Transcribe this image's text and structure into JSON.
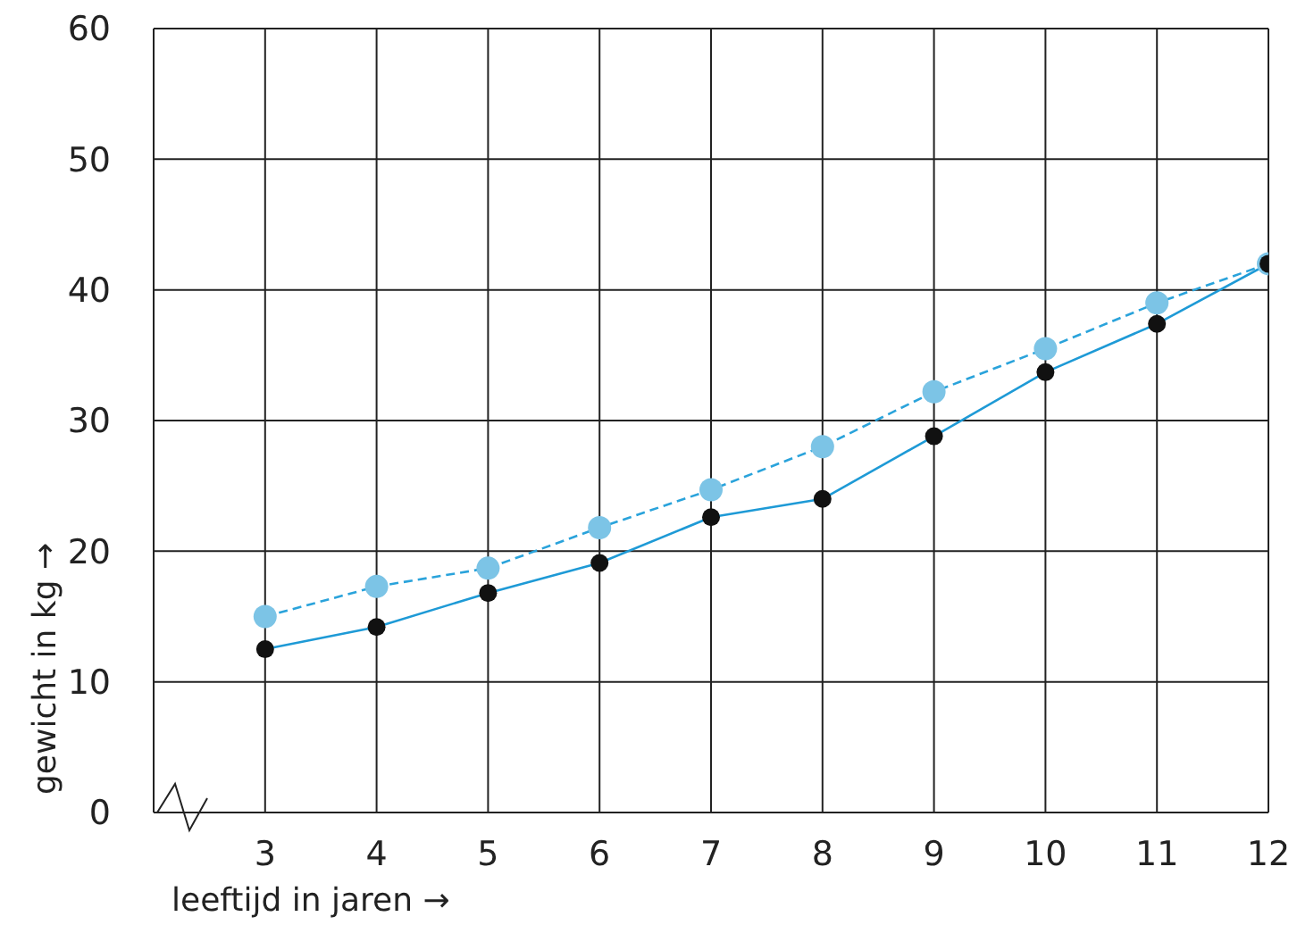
{
  "chart_data": {
    "type": "line",
    "xlabel": "leeftijd in jaren →",
    "ylabel": "gewicht in kg →",
    "x": [
      3,
      4,
      5,
      6,
      7,
      8,
      9,
      10,
      11,
      12
    ],
    "xlim": [
      2,
      12
    ],
    "xticks": [
      3,
      4,
      5,
      6,
      7,
      8,
      9,
      10,
      11,
      12
    ],
    "ylim": [
      0,
      60
    ],
    "yticks": [
      0,
      10,
      20,
      30,
      40,
      50,
      60
    ],
    "grid": true,
    "legend": false,
    "marker": "circle",
    "series": [
      {
        "color": "#1e9ad6",
        "line_style": "solid",
        "colors": [
          "#111111",
          "#111111",
          "#111111",
          "#111111",
          "#111111",
          "#111111",
          "#111111",
          "#111111",
          "#111111",
          "#111111"
        ],
        "values": [
          12.5,
          14.2,
          16.8,
          19.1,
          22.6,
          24.0,
          28.8,
          33.7,
          37.4,
          42.0
        ]
      },
      {
        "color": "#2aa3db",
        "line_style": "dashed",
        "colors": [
          "#7cc4e6",
          "#7cc4e6",
          "#7cc4e6",
          "#7cc4e6",
          "#7cc4e6",
          "#7cc4e6",
          "#7cc4e6",
          "#7cc4e6",
          "#7cc4e6",
          "#7cc4e6"
        ],
        "values": [
          15.0,
          17.3,
          18.7,
          21.8,
          24.7,
          28.0,
          32.2,
          35.5,
          39.0,
          42.0
        ]
      }
    ]
  }
}
